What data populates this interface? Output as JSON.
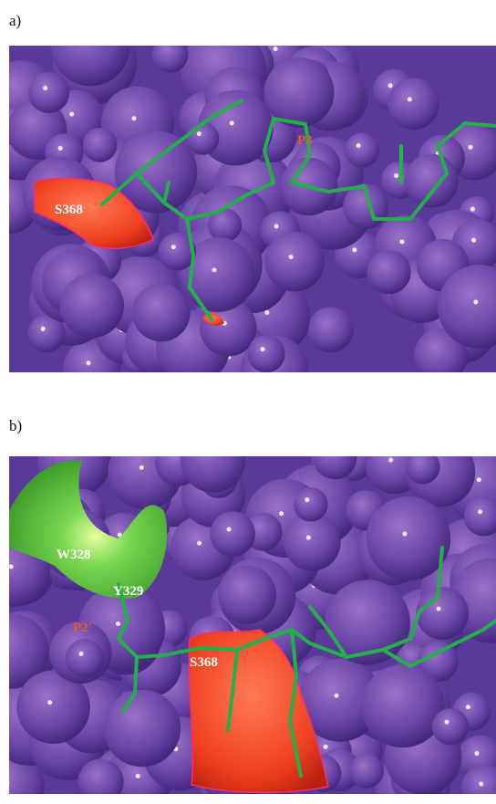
{
  "panels": [
    {
      "label": "a)",
      "annotations": [
        "S368",
        "P3"
      ]
    },
    {
      "label": "b)",
      "annotations": [
        "W328",
        "Y329",
        "P2'",
        "S368"
      ]
    }
  ]
}
